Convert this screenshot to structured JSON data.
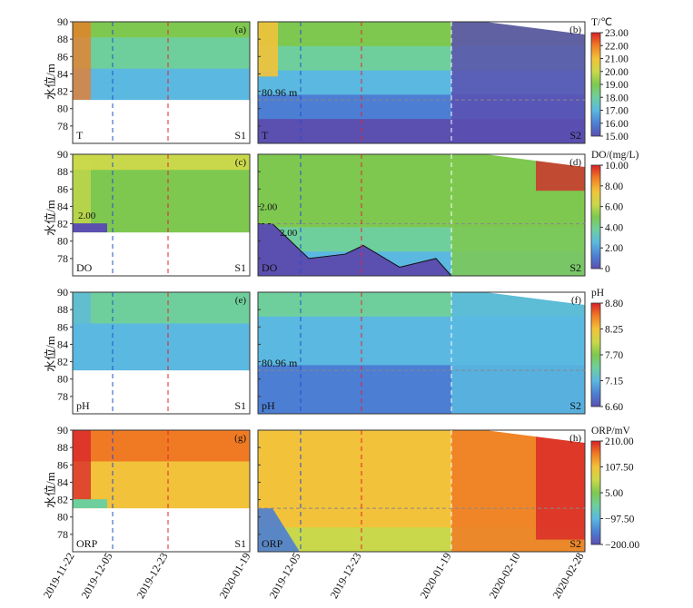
{
  "chart_data": {
    "type": "heatmap",
    "title": "",
    "ylabel": "水位/m",
    "ylim": [
      76,
      90
    ],
    "yticks": [
      "78",
      "80",
      "82",
      "84",
      "86",
      "88",
      "90"
    ],
    "x_left": {
      "ticks": [
        "2019-11-22",
        "2019-12-05",
        "2019-12-23",
        "2020-01-19"
      ],
      "site": "S1"
    },
    "x_right": {
      "ticks": [
        "2019-12-05",
        "2019-12-23",
        "2020-01-19",
        "2020-02-10",
        "2020-02-28"
      ],
      "site": "S2"
    },
    "panels": [
      {
        "param": "T",
        "letters": [
          "(a)",
          "(b)"
        ],
        "colorbar_title": "T/℃",
        "colorbar_ticks": [
          "23.00",
          "22.00",
          "21.00",
          "20.00",
          "19.00",
          "18.00",
          "17.00",
          "16.00",
          "15.00"
        ],
        "annotations": [
          "80.96 m"
        ],
        "bottom_left": "T",
        "palette": [
          "#5b4fb0",
          "#4c7ed3",
          "#5bb8e0",
          "#6fcf9c",
          "#7ec850",
          "#c9d84a",
          "#f2c23a",
          "#f07a24",
          "#d8202a"
        ]
      },
      {
        "param": "DO",
        "letters": [
          "(c)",
          "(d)"
        ],
        "colorbar_title": "DO/(mg/L)",
        "colorbar_ticks": [
          "10.00",
          "8.00",
          "6.00",
          "4.00",
          "2.00",
          "0"
        ],
        "annotations": [
          "2.00",
          "2.00",
          "2.00"
        ],
        "bottom_left": "DO",
        "palette": [
          "#5b4fb0",
          "#4c7ed3",
          "#5bb8e0",
          "#6fcf9c",
          "#7ec850",
          "#c9d84a",
          "#f2c23a",
          "#f07a24",
          "#d8202a"
        ]
      },
      {
        "param": "pH",
        "letters": [
          "(e)",
          "(f)"
        ],
        "colorbar_title": "pH",
        "colorbar_ticks": [
          "8.80",
          "8.25",
          "7.70",
          "7.15",
          "6.60"
        ],
        "annotations": [
          "80.96 m"
        ],
        "bottom_left": "pH",
        "palette": [
          "#5b4fb0",
          "#4c7ed3",
          "#5bb8e0",
          "#6fcf9c",
          "#7ec850",
          "#c9d84a",
          "#f2c23a",
          "#f07a24",
          "#d8202a"
        ]
      },
      {
        "param": "ORP",
        "letters": [
          "(g)",
          "(h)"
        ],
        "colorbar_title": "ORP/mV",
        "colorbar_ticks": [
          "210.00",
          "107.50",
          "5.00",
          "−97.50",
          "−200.00"
        ],
        "annotations": [],
        "bottom_left": "ORP",
        "palette": [
          "#5b4fb0",
          "#4c7ed3",
          "#5bb8e0",
          "#6fcf9c",
          "#7ec850",
          "#c9d84a",
          "#f2c23a",
          "#f07a24",
          "#d8202a"
        ]
      }
    ],
    "reference_lines": {
      "blue": "2019-12-05",
      "red": "2019-12-23",
      "white": "2020-01-19",
      "water_level": "80.96 m"
    }
  }
}
